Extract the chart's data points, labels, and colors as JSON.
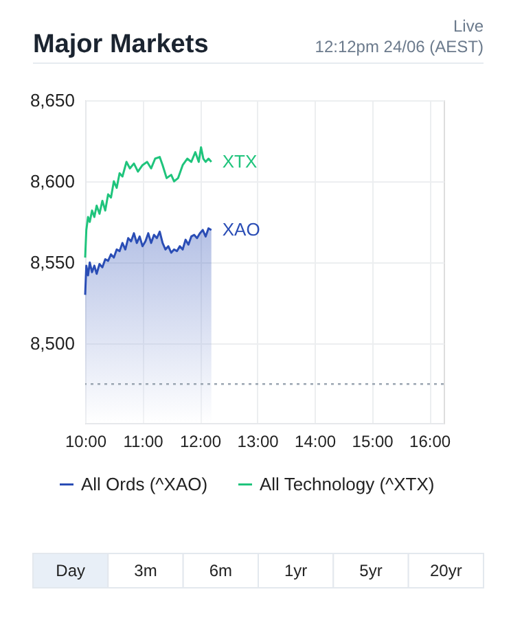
{
  "chart_data": {
    "type": "line",
    "title": "Major Markets",
    "subtitle": "12:12pm 24/06 (AEST)",
    "xlim": [
      10,
      16.25
    ],
    "ylim": [
      8451,
      8650
    ],
    "xticks": [
      {
        "value": 10,
        "label": "10:00"
      },
      {
        "value": 11,
        "label": "11:00"
      },
      {
        "value": 12,
        "label": "12:00"
      },
      {
        "value": 13,
        "label": "13:00"
      },
      {
        "value": 14,
        "label": "14:00"
      },
      {
        "value": 15,
        "label": "15:00"
      },
      {
        "value": 16,
        "label": "16:00"
      }
    ],
    "yticks": [
      {
        "value": 8500,
        "label": "8,500"
      },
      {
        "value": 8550,
        "label": "8,550"
      },
      {
        "value": 8600,
        "label": "8,600"
      },
      {
        "value": 8650,
        "label": "8,650"
      }
    ],
    "grid": true,
    "legend": "bottom",
    "ref_lines": [
      {
        "axis": "y",
        "value": 8475,
        "color": "#9aa5b1",
        "line_style": "dotted"
      }
    ],
    "series": [
      {
        "name": "All Ords (^XAO)",
        "type": "area",
        "color": "#2a4db5",
        "x": [
          10.0,
          10.02,
          10.05,
          10.08,
          10.12,
          10.16,
          10.2,
          10.25,
          10.3,
          10.35,
          10.4,
          10.45,
          10.5,
          10.55,
          10.6,
          10.65,
          10.7,
          10.75,
          10.8,
          10.85,
          10.9,
          10.95,
          11.0,
          11.05,
          11.1,
          11.15,
          11.2,
          11.25,
          11.3,
          11.35,
          11.4,
          11.45,
          11.5,
          11.55,
          11.6,
          11.65,
          11.7,
          11.75,
          11.8,
          11.85,
          11.9,
          11.95,
          12.0,
          12.05,
          12.1,
          12.15,
          12.2
        ],
        "values": [
          8530,
          8548,
          8542,
          8550,
          8544,
          8548,
          8543,
          8549,
          8547,
          8552,
          8551,
          8555,
          8553,
          8558,
          8557,
          8562,
          8558,
          8565,
          8563,
          8568,
          8562,
          8566,
          8560,
          8563,
          8568,
          8562,
          8567,
          8565,
          8569,
          8562,
          8558,
          8560,
          8556,
          8558,
          8557,
          8560,
          8558,
          8564,
          8561,
          8566,
          8567,
          8565,
          8568,
          8570,
          8566,
          8571,
          8570
        ]
      },
      {
        "name": "All Technology (^XTX)",
        "color": "#1fc47c",
        "x": [
          10.0,
          10.02,
          10.05,
          10.08,
          10.12,
          10.16,
          10.2,
          10.25,
          10.3,
          10.35,
          10.4,
          10.45,
          10.5,
          10.55,
          10.6,
          10.65,
          10.72,
          10.78,
          10.85,
          10.92,
          11.0,
          11.08,
          11.15,
          11.22,
          11.3,
          11.35,
          11.42,
          11.5,
          11.55,
          11.62,
          11.7,
          11.78,
          11.85,
          11.92,
          11.98,
          12.02,
          12.06,
          12.1,
          12.15,
          12.2
        ],
        "values": [
          8553,
          8570,
          8578,
          8575,
          8582,
          8578,
          8585,
          8580,
          8588,
          8582,
          8592,
          8590,
          8600,
          8596,
          8605,
          8603,
          8612,
          8608,
          8611,
          8606,
          8610,
          8612,
          8608,
          8614,
          8615,
          8610,
          8602,
          8604,
          8600,
          8602,
          8610,
          8614,
          8612,
          8618,
          8612,
          8621,
          8614,
          8612,
          8614,
          8612
        ]
      }
    ],
    "annotations": [
      "Live",
      {
        "text": "XTX",
        "x": 12.2,
        "y": 8612
      },
      {
        "text": "XAO",
        "x": 12.2,
        "y": 8570
      },
      "Day",
      "3m",
      "6m",
      "1yr",
      "5yr",
      "20yr"
    ]
  }
}
